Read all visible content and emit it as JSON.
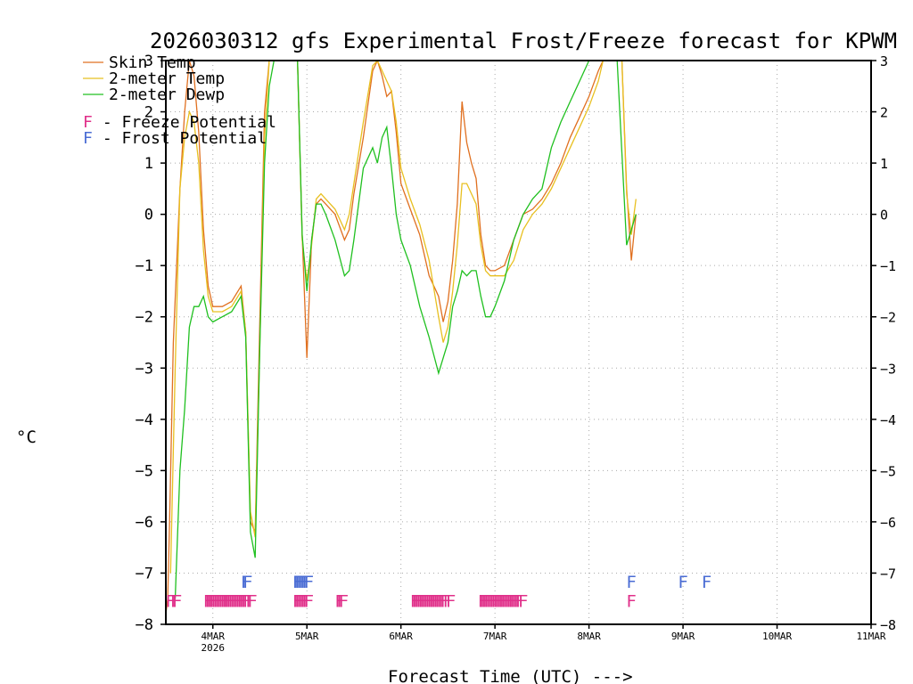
{
  "chart_data": {
    "type": "line",
    "title": "2026030312 gfs Experimental Frost/Freeze forecast for KPWM",
    "ylabel": "°C",
    "xlabel": "Forecast Time (UTC) --->",
    "ylim": [
      -8,
      3
    ],
    "xlim": [
      3.5,
      11
    ],
    "yticks": [
      -8,
      -7,
      -6,
      -5,
      -4,
      -3,
      -2,
      -1,
      0,
      1,
      2,
      3
    ],
    "xticks": [
      {
        "x": 4,
        "label": "4MAR",
        "sublabel": "2026"
      },
      {
        "x": 5,
        "label": "5MAR",
        "sublabel": ""
      },
      {
        "x": 6,
        "label": "6MAR",
        "sublabel": ""
      },
      {
        "x": 7,
        "label": "7MAR",
        "sublabel": ""
      },
      {
        "x": 8,
        "label": "8MAR",
        "sublabel": ""
      },
      {
        "x": 9,
        "label": "9MAR",
        "sublabel": ""
      },
      {
        "x": 10,
        "label": "10MAR",
        "sublabel": ""
      },
      {
        "x": 11,
        "label": "11MAR",
        "sublabel": ""
      }
    ],
    "grid": true,
    "series": [
      {
        "name": "Skin Temp",
        "color": "#e07020",
        "x": [
          3.5,
          3.52,
          3.54,
          3.58,
          3.65,
          3.7,
          3.75,
          3.8,
          3.85,
          3.9,
          3.95,
          4.0,
          4.1,
          4.2,
          4.3,
          4.35,
          4.4,
          4.45,
          4.5,
          4.55,
          4.6,
          4.7,
          4.8,
          4.85,
          4.9,
          4.95,
          5.0,
          5.05,
          5.1,
          5.15,
          5.2,
          5.3,
          5.4,
          5.45,
          5.5,
          5.6,
          5.7,
          5.75,
          5.8,
          5.85,
          5.9,
          5.95,
          6.0,
          6.1,
          6.2,
          6.3,
          6.4,
          6.45,
          6.5,
          6.55,
          6.6,
          6.65,
          6.7,
          6.75,
          6.8,
          6.85,
          6.9,
          6.95,
          7.0,
          7.1,
          7.2,
          7.3,
          7.4,
          7.5,
          7.6,
          7.7,
          7.8,
          7.9,
          8.0,
          8.1,
          8.15,
          8.2,
          8.25,
          8.3,
          8.35,
          8.4,
          8.45,
          8.5
        ],
        "y": [
          -7.8,
          -7.5,
          -6.0,
          -2.5,
          0.5,
          2.0,
          3.0,
          2.7,
          1.6,
          -0.3,
          -1.4,
          -1.8,
          -1.8,
          -1.7,
          -1.4,
          -2.3,
          -6.0,
          -6.2,
          -2.0,
          2.0,
          3.0,
          3.0,
          3.0,
          3.0,
          3.0,
          -0.4,
          -2.8,
          -0.5,
          0.2,
          0.3,
          0.2,
          0.0,
          -0.5,
          -0.3,
          0.4,
          1.5,
          2.8,
          3.0,
          2.7,
          2.3,
          2.4,
          1.6,
          0.6,
          0.1,
          -0.4,
          -1.2,
          -1.6,
          -2.1,
          -1.7,
          -0.9,
          0.2,
          2.2,
          1.4,
          1.0,
          0.7,
          -0.4,
          -1.0,
          -1.1,
          -1.1,
          -1.0,
          -0.5,
          0.0,
          0.1,
          0.3,
          0.6,
          1.0,
          1.5,
          1.9,
          2.3,
          2.8,
          3.0,
          3.0,
          3.0,
          3.0,
          3.0,
          0.5,
          -0.9,
          0.0
        ]
      },
      {
        "name": "2-meter Temp",
        "color": "#e8c020",
        "x": [
          3.55,
          3.6,
          3.65,
          3.7,
          3.75,
          3.8,
          3.85,
          3.9,
          3.95,
          4.0,
          4.1,
          4.2,
          4.3,
          4.35,
          4.4,
          4.45,
          4.5,
          4.55,
          4.6,
          4.7,
          4.8,
          4.85,
          4.9,
          4.95,
          5.0,
          5.05,
          5.1,
          5.15,
          5.2,
          5.3,
          5.4,
          5.45,
          5.5,
          5.6,
          5.7,
          5.75,
          5.8,
          5.85,
          5.9,
          5.95,
          6.0,
          6.1,
          6.2,
          6.3,
          6.4,
          6.45,
          6.5,
          6.55,
          6.6,
          6.65,
          6.7,
          6.75,
          6.8,
          6.85,
          6.9,
          6.95,
          7.0,
          7.1,
          7.2,
          7.3,
          7.4,
          7.5,
          7.6,
          7.7,
          7.8,
          7.9,
          8.0,
          8.1,
          8.15,
          8.2,
          8.25,
          8.3,
          8.35,
          8.4,
          8.45,
          8.5
        ],
        "y": [
          -7.0,
          -3.0,
          0.5,
          1.5,
          2.0,
          1.8,
          1.0,
          -0.7,
          -1.6,
          -1.9,
          -1.9,
          -1.8,
          -1.5,
          -2.3,
          -5.8,
          -6.3,
          -2.5,
          1.5,
          3.0,
          3.0,
          3.0,
          3.0,
          3.0,
          -0.5,
          -1.3,
          -0.6,
          0.3,
          0.4,
          0.3,
          0.1,
          -0.3,
          0.0,
          0.6,
          1.8,
          2.9,
          3.0,
          2.8,
          2.6,
          2.4,
          1.8,
          0.9,
          0.3,
          -0.2,
          -0.9,
          -2.0,
          -2.5,
          -2.2,
          -1.5,
          -0.6,
          0.6,
          0.6,
          0.4,
          0.2,
          -0.6,
          -1.1,
          -1.2,
          -1.2,
          -1.2,
          -0.9,
          -0.3,
          0.0,
          0.2,
          0.5,
          0.9,
          1.3,
          1.7,
          2.1,
          2.6,
          3.0,
          3.0,
          3.0,
          3.0,
          3.0,
          0.4,
          -0.4,
          0.3
        ]
      },
      {
        "name": "2-meter Dewp",
        "color": "#20c020",
        "x": [
          3.6,
          3.65,
          3.7,
          3.75,
          3.8,
          3.85,
          3.9,
          3.95,
          4.0,
          4.1,
          4.2,
          4.3,
          4.35,
          4.4,
          4.45,
          4.5,
          4.55,
          4.6,
          4.65,
          4.7,
          4.8,
          4.85,
          4.9,
          4.95,
          5.0,
          5.05,
          5.1,
          5.15,
          5.2,
          5.3,
          5.4,
          5.45,
          5.5,
          5.6,
          5.7,
          5.75,
          5.8,
          5.85,
          5.9,
          5.95,
          6.0,
          6.1,
          6.2,
          6.3,
          6.4,
          6.45,
          6.5,
          6.55,
          6.6,
          6.65,
          6.7,
          6.75,
          6.8,
          6.85,
          6.9,
          6.95,
          7.0,
          7.1,
          7.2,
          7.3,
          7.4,
          7.5,
          7.6,
          7.7,
          7.8,
          7.9,
          8.0,
          8.1,
          8.15,
          8.2,
          8.25,
          8.3,
          8.35,
          8.4,
          8.45,
          8.5
        ],
        "y": [
          -7.5,
          -5.0,
          -3.8,
          -2.2,
          -1.8,
          -1.8,
          -1.6,
          -2.0,
          -2.1,
          -2.0,
          -1.9,
          -1.6,
          -2.4,
          -6.2,
          -6.7,
          -2.5,
          1.0,
          2.5,
          3.0,
          3.0,
          3.0,
          3.0,
          3.0,
          -0.4,
          -1.5,
          -0.5,
          0.2,
          0.2,
          0.0,
          -0.5,
          -1.2,
          -1.1,
          -0.5,
          0.9,
          1.3,
          1.0,
          1.5,
          1.7,
          0.9,
          0.0,
          -0.5,
          -1.0,
          -1.8,
          -2.4,
          -3.1,
          -2.8,
          -2.5,
          -1.8,
          -1.5,
          -1.1,
          -1.2,
          -1.1,
          -1.1,
          -1.6,
          -2.0,
          -2.0,
          -1.8,
          -1.3,
          -0.5,
          0.0,
          0.3,
          0.5,
          1.3,
          1.8,
          2.2,
          2.6,
          3.0,
          3.0,
          3.0,
          3.0,
          3.0,
          3.0,
          1.2,
          -0.6,
          -0.3,
          0.0
        ]
      }
    ],
    "legend": [
      {
        "label": "Skin Temp",
        "color": "#e07020"
      },
      {
        "label": "2-meter Temp",
        "color": "#e8c020"
      },
      {
        "label": "2-meter Dewp",
        "color": "#20c020"
      }
    ],
    "potential_legend": [
      {
        "symbol": "F",
        "text": " - Freeze Potential",
        "color": "#e0308a"
      },
      {
        "symbol": "F",
        "text": " - Frost Potential",
        "color": "#4a6cd4"
      }
    ],
    "frost_markers": {
      "symbol": "F",
      "color": "#4a6cd4",
      "y": -7.15,
      "x": [
        4.35,
        4.37,
        4.9,
        4.92,
        4.94,
        4.96,
        4.98,
        5.0,
        5.02,
        8.45,
        9.0,
        9.25
      ]
    },
    "freeze_markers": {
      "symbol": "F",
      "color": "#e0308a",
      "y": -7.52,
      "x": [
        3.55,
        3.6,
        3.62,
        3.95,
        3.97,
        3.99,
        4.01,
        4.03,
        4.05,
        4.07,
        4.09,
        4.11,
        4.13,
        4.15,
        4.17,
        4.19,
        4.21,
        4.23,
        4.25,
        4.27,
        4.29,
        4.31,
        4.33,
        4.35,
        4.37,
        4.4,
        4.42,
        4.9,
        4.92,
        4.94,
        4.96,
        4.98,
        5.0,
        5.02,
        5.35,
        5.37,
        5.39,
        6.15,
        6.17,
        6.19,
        6.21,
        6.23,
        6.25,
        6.27,
        6.29,
        6.31,
        6.33,
        6.35,
        6.37,
        6.39,
        6.41,
        6.43,
        6.45,
        6.47,
        6.5,
        6.53,
        6.87,
        6.89,
        6.91,
        6.93,
        6.95,
        6.97,
        6.99,
        7.01,
        7.03,
        7.05,
        7.07,
        7.09,
        7.11,
        7.13,
        7.15,
        7.17,
        7.19,
        7.21,
        7.23,
        7.25,
        7.27,
        7.3,
        8.45
      ]
    }
  }
}
